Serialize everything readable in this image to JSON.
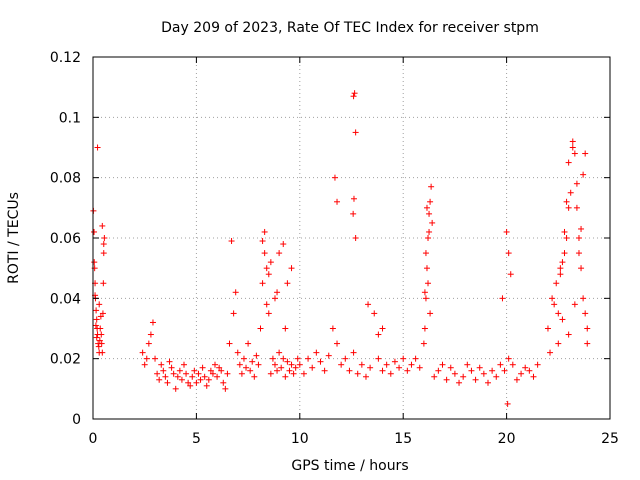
{
  "chart_data": {
    "type": "scatter",
    "title": "Day 209 of 2023, Rate Of TEC Index for receiver stpm",
    "xlabel": "GPS time / hours",
    "ylabel": "ROTI / TECUs",
    "xlim": [
      0,
      25
    ],
    "ylim": [
      0,
      0.12
    ],
    "xticks": [
      "0",
      "5",
      "10",
      "15",
      "20",
      "25"
    ],
    "yticks": [
      "0",
      "0.02",
      "0.04",
      "0.06",
      "0.08",
      "0.1",
      "0.12"
    ],
    "grid": true,
    "marker": "plus",
    "color": "#ff0000",
    "series": [
      {
        "name": "",
        "x": [
          0.02,
          0.05,
          0.08,
          0.1,
          0.12,
          0.15,
          0.18,
          0.2,
          0.22,
          0.25,
          0.28,
          0.3,
          0.33,
          0.35,
          0.38,
          0.4,
          0.42,
          0.45,
          0.48,
          0.5,
          0.52,
          0.55,
          0.22,
          0.3,
          0.45,
          0.52,
          0.06,
          0.1,
          0.14,
          0.18,
          2.4,
          2.5,
          2.6,
          2.7,
          2.8,
          2.9,
          3.0,
          3.1,
          3.2,
          3.3,
          3.4,
          3.5,
          3.6,
          3.7,
          3.8,
          3.9,
          4.0,
          4.1,
          4.2,
          4.3,
          4.4,
          4.5,
          4.6,
          4.7,
          4.8,
          4.9,
          5.0,
          5.1,
          5.2,
          5.3,
          5.4,
          5.5,
          5.6,
          5.7,
          5.8,
          5.9,
          6.0,
          6.1,
          6.2,
          6.3,
          6.4,
          6.5,
          6.6,
          6.7,
          6.8,
          6.9,
          7.0,
          7.1,
          7.2,
          7.3,
          7.4,
          7.5,
          7.6,
          7.7,
          7.8,
          7.9,
          8.0,
          8.1,
          8.2,
          8.3,
          8.4,
          8.5,
          8.6,
          8.7,
          8.8,
          8.9,
          9.0,
          9.1,
          9.2,
          9.3,
          9.4,
          9.5,
          9.6,
          9.7,
          9.8,
          9.9,
          8.2,
          8.3,
          8.5,
          8.6,
          8.8,
          9.0,
          9.2,
          9.4,
          9.6,
          8.4,
          8.9,
          9.3,
          10.0,
          10.2,
          10.4,
          10.6,
          10.8,
          11.0,
          11.2,
          11.4,
          11.6,
          11.8,
          12.0,
          12.2,
          12.4,
          12.6,
          12.8,
          13.0,
          13.2,
          13.4,
          13.6,
          13.8,
          14.0,
          14.2,
          14.4,
          14.6,
          14.8,
          15.0,
          15.2,
          15.4,
          15.6,
          15.8,
          11.7,
          11.8,
          12.6,
          12.65,
          12.7,
          12.62,
          12.58,
          12.7,
          13.3,
          13.8,
          14.0,
          16.0,
          16.05,
          16.1,
          16.15,
          16.2,
          16.25,
          16.3,
          16.35,
          16.4,
          16.1,
          16.2,
          16.3,
          16.15,
          16.25,
          16.05,
          16.5,
          16.7,
          16.9,
          17.1,
          17.3,
          17.5,
          17.7,
          17.9,
          18.1,
          18.3,
          18.5,
          18.7,
          18.9,
          19.1,
          19.3,
          19.5,
          19.7,
          19.9,
          20.1,
          20.3,
          20.5,
          20.7,
          20.9,
          21.1,
          21.3,
          21.5,
          19.8,
          20.0,
          20.1,
          20.2,
          20.05,
          22.0,
          22.2,
          22.4,
          22.6,
          22.8,
          22.9,
          23.0,
          23.1,
          23.2,
          23.3,
          23.4,
          23.5,
          23.6,
          23.7,
          23.8,
          23.9,
          22.5,
          22.6,
          22.7,
          22.8,
          22.9,
          23.0,
          23.2,
          23.4,
          23.6,
          23.7,
          22.5,
          22.7,
          23.0,
          23.3,
          23.8,
          22.1,
          22.3,
          23.5,
          23.9
        ],
        "y": [
          0.069,
          0.062,
          0.05,
          0.045,
          0.04,
          0.036,
          0.033,
          0.03,
          0.028,
          0.025,
          0.024,
          0.022,
          0.026,
          0.03,
          0.034,
          0.028,
          0.025,
          0.022,
          0.035,
          0.045,
          0.055,
          0.06,
          0.09,
          0.038,
          0.064,
          0.058,
          0.052,
          0.041,
          0.031,
          0.027,
          0.022,
          0.018,
          0.02,
          0.025,
          0.028,
          0.032,
          0.02,
          0.015,
          0.013,
          0.018,
          0.016,
          0.014,
          0.012,
          0.019,
          0.017,
          0.015,
          0.01,
          0.014,
          0.016,
          0.013,
          0.018,
          0.015,
          0.012,
          0.011,
          0.014,
          0.016,
          0.012,
          0.015,
          0.013,
          0.017,
          0.014,
          0.011,
          0.013,
          0.016,
          0.015,
          0.018,
          0.014,
          0.017,
          0.016,
          0.012,
          0.01,
          0.015,
          0.025,
          0.059,
          0.035,
          0.042,
          0.022,
          0.018,
          0.015,
          0.02,
          0.017,
          0.025,
          0.016,
          0.019,
          0.014,
          0.021,
          0.018,
          0.03,
          0.045,
          0.055,
          0.05,
          0.035,
          0.015,
          0.02,
          0.018,
          0.016,
          0.022,
          0.017,
          0.02,
          0.014,
          0.019,
          0.016,
          0.018,
          0.015,
          0.017,
          0.02,
          0.059,
          0.062,
          0.048,
          0.052,
          0.04,
          0.055,
          0.058,
          0.045,
          0.05,
          0.038,
          0.042,
          0.03,
          0.018,
          0.015,
          0.02,
          0.017,
          0.022,
          0.019,
          0.016,
          0.021,
          0.03,
          0.025,
          0.018,
          0.02,
          0.016,
          0.022,
          0.015,
          0.018,
          0.014,
          0.017,
          0.035,
          0.02,
          0.016,
          0.018,
          0.015,
          0.019,
          0.017,
          0.02,
          0.016,
          0.018,
          0.02,
          0.017,
          0.08,
          0.072,
          0.107,
          0.108,
          0.095,
          0.073,
          0.068,
          0.06,
          0.038,
          0.028,
          0.03,
          0.025,
          0.03,
          0.04,
          0.05,
          0.06,
          0.068,
          0.072,
          0.077,
          0.065,
          0.055,
          0.045,
          0.035,
          0.07,
          0.062,
          0.042,
          0.014,
          0.016,
          0.018,
          0.013,
          0.017,
          0.015,
          0.012,
          0.014,
          0.018,
          0.016,
          0.013,
          0.017,
          0.015,
          0.012,
          0.016,
          0.014,
          0.018,
          0.016,
          0.02,
          0.018,
          0.013,
          0.015,
          0.017,
          0.016,
          0.014,
          0.018,
          0.04,
          0.062,
          0.055,
          0.048,
          0.005,
          0.03,
          0.04,
          0.045,
          0.05,
          0.055,
          0.06,
          0.07,
          0.075,
          0.09,
          0.088,
          0.078,
          0.06,
          0.05,
          0.04,
          0.035,
          0.03,
          0.035,
          0.048,
          0.052,
          0.062,
          0.072,
          0.085,
          0.092,
          0.07,
          0.063,
          0.081,
          0.025,
          0.033,
          0.028,
          0.038,
          0.088,
          0.022,
          0.038,
          0.055,
          0.025
        ]
      }
    ]
  }
}
